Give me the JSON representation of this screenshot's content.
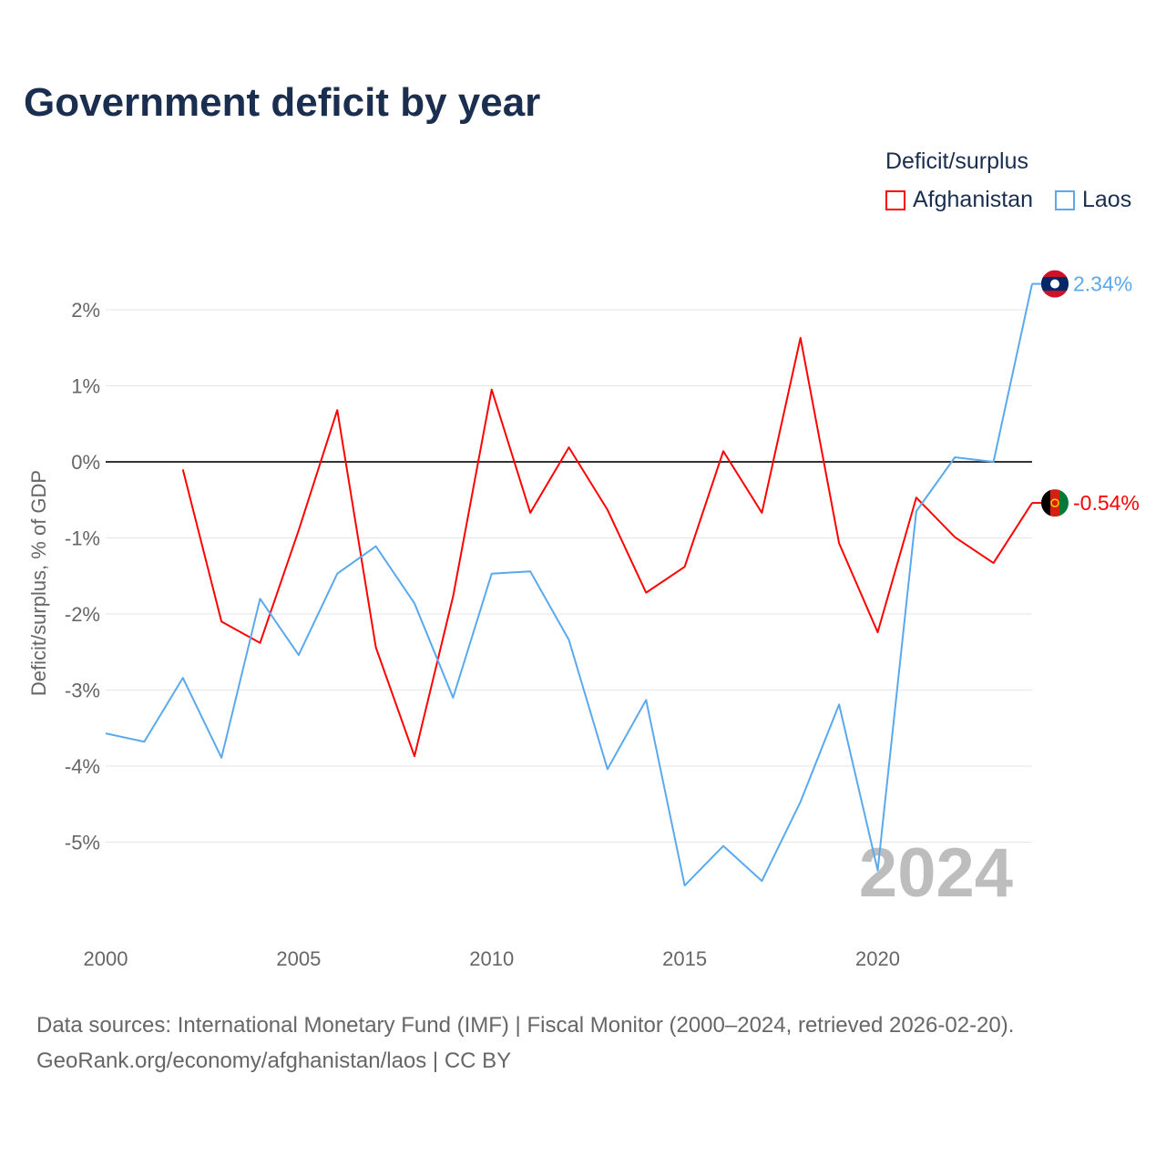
{
  "chart_data": {
    "type": "line",
    "title": "Government deficit by year",
    "ylabel": "Deficit/surplus, % of GDP",
    "xlabel": "",
    "legend_title": "Deficit/surplus",
    "legend_position": "top-right",
    "ylim": [
      -6.0,
      2.9
    ],
    "xlim": [
      2000,
      2024
    ],
    "y_ticks": [
      2,
      1,
      0,
      -1,
      -2,
      -3,
      -4,
      -5
    ],
    "y_tick_labels": [
      "2%",
      "1%",
      "0%",
      "-1%",
      "-2%",
      "-3%",
      "-4%",
      "-5%"
    ],
    "x_ticks": [
      2000,
      2005,
      2010,
      2015,
      2020
    ],
    "x_tick_labels": [
      "2000",
      "2005",
      "2010",
      "2015",
      "2020"
    ],
    "watermark_year": "2024",
    "series": [
      {
        "name": "Afghanistan",
        "color": "#ff0000",
        "end_label": "-0.54%",
        "x": [
          2002,
          2003,
          2004,
          2005,
          2006,
          2007,
          2008,
          2009,
          2010,
          2011,
          2012,
          2013,
          2014,
          2015,
          2016,
          2017,
          2018,
          2019,
          2020,
          2021,
          2022,
          2023,
          2024
        ],
        "values": [
          -0.1,
          -2.1,
          -2.38,
          -0.9,
          0.68,
          -2.44,
          -3.87,
          -1.77,
          0.95,
          -0.67,
          0.19,
          -0.63,
          -1.72,
          -1.38,
          0.14,
          -0.67,
          1.63,
          -1.07,
          -2.24,
          -0.47,
          -0.99,
          -1.33,
          -0.54
        ]
      },
      {
        "name": "Laos",
        "color": "#5aa9ee",
        "end_label": "2.34%",
        "x": [
          2000,
          2001,
          2002,
          2003,
          2004,
          2005,
          2006,
          2007,
          2008,
          2009,
          2010,
          2011,
          2012,
          2013,
          2014,
          2015,
          2016,
          2017,
          2018,
          2019,
          2020,
          2021,
          2022,
          2023,
          2024
        ],
        "values": [
          -3.57,
          -3.68,
          -2.84,
          -3.89,
          -1.8,
          -2.54,
          -1.47,
          -1.11,
          -1.86,
          -3.1,
          -1.47,
          -1.44,
          -2.34,
          -4.04,
          -3.13,
          -5.57,
          -5.05,
          -5.51,
          -4.47,
          -3.19,
          -5.37,
          -0.65,
          0.06,
          0.0,
          2.34
        ]
      }
    ]
  },
  "footer": {
    "source": "Data sources: International Monetary Fund (IMF) | Fiscal Monitor (2000–2024, retrieved 2026-02-20).",
    "credit": "GeoRank.org/economy/afghanistan/laos | CC BY"
  }
}
